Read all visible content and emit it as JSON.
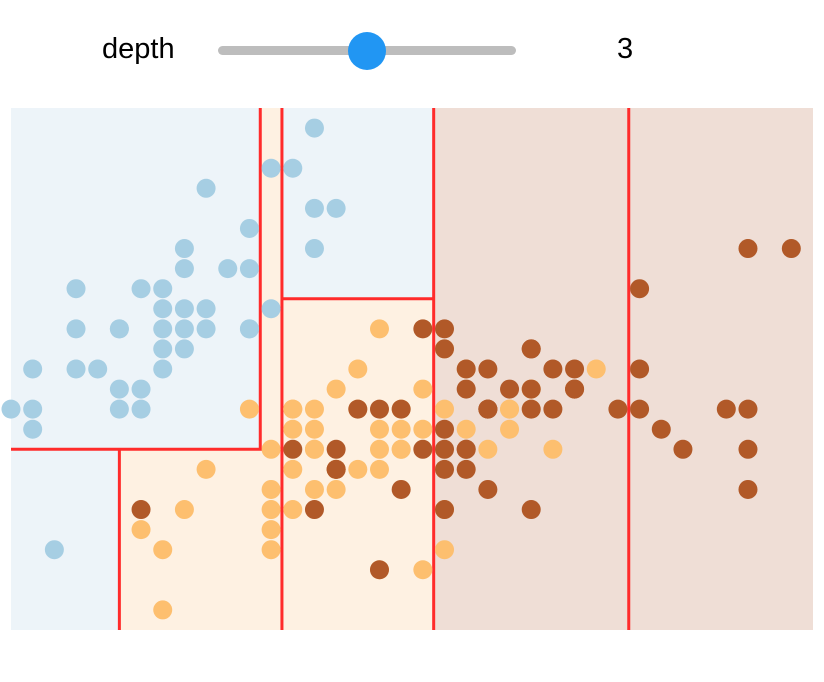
{
  "control": {
    "label": "depth",
    "value": "3",
    "value_fraction": 0.5,
    "thumb_color": "#2196f3",
    "track_color": "#bdbdbd"
  },
  "chart_data": {
    "type": "scatter",
    "title": "",
    "xlabel": "",
    "ylabel": "",
    "xlim": [
      4.3,
      8.0
    ],
    "ylim": [
      1.9,
      4.5
    ],
    "grid": false,
    "legend": "none",
    "classes": [
      {
        "id": 0,
        "point_color": "#a6cee3",
        "region_color": "#edf4f9"
      },
      {
        "id": 1,
        "point_color": "#fdbf6f",
        "region_color": "#fef1e2"
      },
      {
        "id": 2,
        "point_color": "#b15928",
        "region_color": "#efded6"
      }
    ],
    "split_color": "#ff2b2b",
    "regions": [
      {
        "x": [
          4.3,
          5.45
        ],
        "y": [
          2.8,
          4.5
        ],
        "class": 0
      },
      {
        "x": [
          4.3,
          4.8
        ],
        "y": [
          1.9,
          2.8
        ],
        "class": 0
      },
      {
        "x": [
          4.8,
          5.55
        ],
        "y": [
          1.9,
          2.8
        ],
        "class": 1
      },
      {
        "x": [
          5.45,
          5.55
        ],
        "y": [
          2.8,
          4.5
        ],
        "class": 1
      },
      {
        "x": [
          5.55,
          6.25
        ],
        "y": [
          3.55,
          4.5
        ],
        "class": 0
      },
      {
        "x": [
          5.55,
          6.25
        ],
        "y": [
          1.9,
          3.55
        ],
        "class": 1
      },
      {
        "x": [
          6.25,
          7.15
        ],
        "y": [
          1.9,
          4.5
        ],
        "class": 2
      },
      {
        "x": [
          7.15,
          8.0
        ],
        "y": [
          1.9,
          4.5
        ],
        "class": 2
      }
    ],
    "splits": [
      {
        "orientation": "vertical",
        "x": 5.45,
        "y": [
          2.8,
          4.5
        ]
      },
      {
        "orientation": "vertical",
        "x": 5.55,
        "y": [
          1.9,
          4.5
        ]
      },
      {
        "orientation": "vertical",
        "x": 6.25,
        "y": [
          1.9,
          4.5
        ]
      },
      {
        "orientation": "vertical",
        "x": 7.15,
        "y": [
          1.9,
          4.5
        ]
      },
      {
        "orientation": "horizontal",
        "y": 2.8,
        "x": [
          4.3,
          5.55
        ]
      },
      {
        "orientation": "horizontal",
        "y": 3.55,
        "x": [
          5.55,
          6.25
        ]
      },
      {
        "orientation": "vertical",
        "x": 4.8,
        "y": [
          1.9,
          2.8
        ]
      }
    ],
    "series": [
      {
        "class": 0,
        "points": [
          [
            5.8,
            4.0
          ],
          [
            5.7,
            4.4
          ],
          [
            5.7,
            3.8
          ],
          [
            5.4,
            3.9
          ],
          [
            5.4,
            3.4
          ],
          [
            5.4,
            3.7
          ],
          [
            5.4,
            3.4
          ],
          [
            5.5,
            4.2
          ],
          [
            5.5,
            3.5
          ],
          [
            5.2,
            3.4
          ],
          [
            5.2,
            3.5
          ],
          [
            5.2,
            4.1
          ],
          [
            5.1,
            3.5
          ],
          [
            5.1,
            3.8
          ],
          [
            5.1,
            3.3
          ],
          [
            5.1,
            3.4
          ],
          [
            5.1,
            3.7
          ],
          [
            5.0,
            3.6
          ],
          [
            5.0,
            3.2
          ],
          [
            5.0,
            3.4
          ],
          [
            5.0,
            3.3
          ],
          [
            4.9,
            3.6
          ],
          [
            4.9,
            3.1
          ],
          [
            4.8,
            3.4
          ],
          [
            4.8,
            3.0
          ],
          [
            4.8,
            3.1
          ],
          [
            4.7,
            3.2
          ],
          [
            4.6,
            3.4
          ],
          [
            4.6,
            3.2
          ],
          [
            4.6,
            3.6
          ],
          [
            4.4,
            3.2
          ],
          [
            4.4,
            3.0
          ],
          [
            4.4,
            2.9
          ],
          [
            4.5,
            2.3
          ],
          [
            4.3,
            3.0
          ],
          [
            5.3,
            3.7
          ],
          [
            4.9,
            3.0
          ],
          [
            4.8,
            3.4
          ],
          [
            5.0,
            3.5
          ],
          [
            5.7,
            4.0
          ],
          [
            5.6,
            4.2
          ]
        ]
      },
      {
        "class": 1,
        "points": [
          [
            7.0,
            3.2
          ],
          [
            6.4,
            3.2
          ],
          [
            6.9,
            3.1
          ],
          [
            5.5,
            2.3
          ],
          [
            6.5,
            2.8
          ],
          [
            5.7,
            2.8
          ],
          [
            6.3,
            3.3
          ],
          [
            4.9,
            2.4
          ],
          [
            6.6,
            2.9
          ],
          [
            5.2,
            2.7
          ],
          [
            5.0,
            2.0
          ],
          [
            5.9,
            3.0
          ],
          [
            6.0,
            2.2
          ],
          [
            6.1,
            2.9
          ],
          [
            5.6,
            2.9
          ],
          [
            6.7,
            3.1
          ],
          [
            5.6,
            3.0
          ],
          [
            5.8,
            2.7
          ],
          [
            6.2,
            2.2
          ],
          [
            5.6,
            2.5
          ],
          [
            5.9,
            3.2
          ],
          [
            6.1,
            2.8
          ],
          [
            6.3,
            2.5
          ],
          [
            6.1,
            2.8
          ],
          [
            6.4,
            2.9
          ],
          [
            6.6,
            3.0
          ],
          [
            6.8,
            2.8
          ],
          [
            6.7,
            3.0
          ],
          [
            6.0,
            2.9
          ],
          [
            5.7,
            2.6
          ],
          [
            5.5,
            2.4
          ],
          [
            5.8,
            2.7
          ],
          [
            6.0,
            2.7
          ],
          [
            5.4,
            3.0
          ],
          [
            6.0,
            3.4
          ],
          [
            6.7,
            3.1
          ],
          [
            6.3,
            2.3
          ],
          [
            5.6,
            3.0
          ],
          [
            5.5,
            2.5
          ],
          [
            5.5,
            2.6
          ],
          [
            6.1,
            3.0
          ],
          [
            5.8,
            2.6
          ],
          [
            5.0,
            2.3
          ],
          [
            5.6,
            2.7
          ],
          [
            5.7,
            3.0
          ],
          [
            5.7,
            2.9
          ],
          [
            6.2,
            2.9
          ],
          [
            5.1,
            2.5
          ],
          [
            5.7,
            2.8
          ],
          [
            6.6,
            3.0
          ],
          [
            6.3,
            3.0
          ],
          [
            6.2,
            3.1
          ],
          [
            6.0,
            2.8
          ],
          [
            5.9,
            2.7
          ],
          [
            5.5,
            2.8
          ],
          [
            5.8,
            3.1
          ]
        ]
      },
      {
        "class": 2,
        "points": [
          [
            6.3,
            3.3
          ],
          [
            5.8,
            2.7
          ],
          [
            7.1,
            3.0
          ],
          [
            6.3,
            2.9
          ],
          [
            6.5,
            3.0
          ],
          [
            7.6,
            3.0
          ],
          [
            4.9,
            2.5
          ],
          [
            7.3,
            2.9
          ],
          [
            6.7,
            2.5
          ],
          [
            7.2,
            3.6
          ],
          [
            6.5,
            3.2
          ],
          [
            6.4,
            2.7
          ],
          [
            6.8,
            3.0
          ],
          [
            5.7,
            2.5
          ],
          [
            5.8,
            2.8
          ],
          [
            6.4,
            3.2
          ],
          [
            6.5,
            3.0
          ],
          [
            7.7,
            3.8
          ],
          [
            7.7,
            2.6
          ],
          [
            6.0,
            2.2
          ],
          [
            6.9,
            3.2
          ],
          [
            5.6,
            2.8
          ],
          [
            7.7,
            2.8
          ],
          [
            6.3,
            2.7
          ],
          [
            6.7,
            3.3
          ],
          [
            7.2,
            3.2
          ],
          [
            6.2,
            2.8
          ],
          [
            6.1,
            3.0
          ],
          [
            6.4,
            2.8
          ],
          [
            7.2,
            3.0
          ],
          [
            7.4,
            2.8
          ],
          [
            7.9,
            3.8
          ],
          [
            6.4,
            2.8
          ],
          [
            6.3,
            2.8
          ],
          [
            6.1,
            2.6
          ],
          [
            7.7,
            3.0
          ],
          [
            6.3,
            3.4
          ],
          [
            6.4,
            3.1
          ],
          [
            6.0,
            3.0
          ],
          [
            6.9,
            3.1
          ],
          [
            6.7,
            3.1
          ],
          [
            6.9,
            3.1
          ],
          [
            6.8,
            3.2
          ],
          [
            6.7,
            3.3
          ],
          [
            6.7,
            3.0
          ],
          [
            6.3,
            2.5
          ],
          [
            6.5,
            3.0
          ],
          [
            6.2,
            3.4
          ],
          [
            5.9,
            3.0
          ],
          [
            5.8,
            2.7
          ],
          [
            6.6,
            3.1
          ],
          [
            6.5,
            2.6
          ]
        ]
      }
    ]
  }
}
